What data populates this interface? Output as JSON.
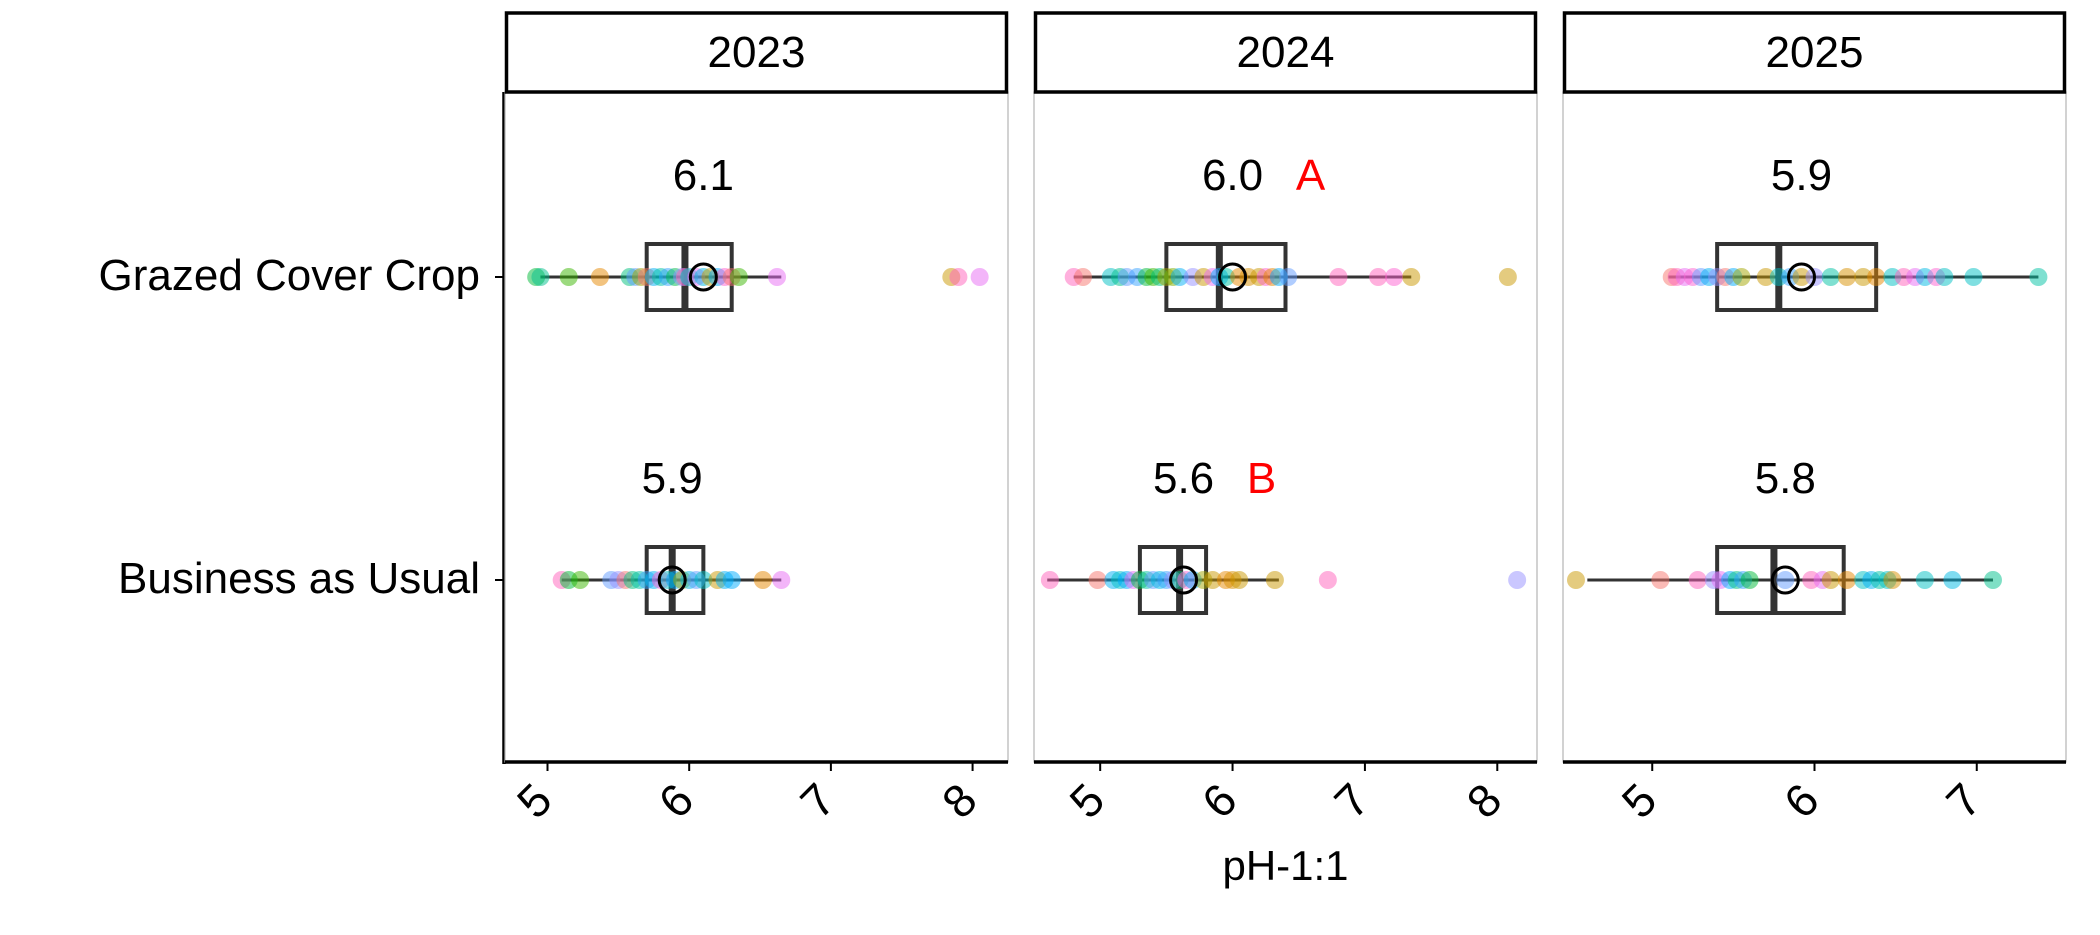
{
  "chart_data": {
    "type": "boxplot",
    "facet_variable": "year",
    "xlabel": "pH-1:1",
    "ylabel": "",
    "categories": [
      "Grazed Cover Crop",
      "Business as Usual"
    ],
    "facets": [
      {
        "label": "2023",
        "xlim": [
          4.7,
          8.25
        ],
        "x_ticks": [
          5,
          6,
          7,
          8
        ],
        "groups": [
          {
            "category": "Grazed Cover Crop",
            "mean_label": "6.1",
            "letter": "",
            "mean": 6.1,
            "box": {
              "min": 4.95,
              "q1": 5.7,
              "median": 5.97,
              "q3": 6.3,
              "max": 6.65
            },
            "points": [
              4.92,
              4.95,
              5.15,
              5.37,
              5.58,
              5.62,
              5.66,
              5.7,
              5.75,
              5.8,
              5.85,
              5.9,
              5.95,
              5.97,
              6.0,
              6.05,
              6.1,
              6.15,
              6.2,
              6.25,
              6.3,
              6.35,
              6.62,
              7.85,
              7.9,
              8.05
            ],
            "point_colors": [
              "#00BA38",
              "#00C08B",
              "#39B600",
              "#E58700",
              "#00BF7D",
              "#619CFF",
              "#A3A500",
              "#F8766D",
              "#00B0F6",
              "#00C1A3",
              "#35A2FF",
              "#00BB4E",
              "#9590FF",
              "#FF62BC",
              "#00BFC4",
              "#E76BF3",
              "#00B9E3",
              "#C99800",
              "#00ABFD",
              "#FD61D1",
              "#F8766D",
              "#39B600",
              "#E76BF3",
              "#C99800",
              "#FF62BC",
              "#E76BF3"
            ]
          },
          {
            "category": "Business as Usual",
            "mean_label": "5.9",
            "letter": "",
            "mean": 5.88,
            "box": {
              "min": 5.1,
              "q1": 5.7,
              "median": 5.88,
              "q3": 6.1,
              "max": 6.65
            },
            "points": [
              5.1,
              5.15,
              5.23,
              5.45,
              5.5,
              5.55,
              5.6,
              5.65,
              5.7,
              5.75,
              5.8,
              5.85,
              5.9,
              5.95,
              6.0,
              6.05,
              6.1,
              6.2,
              6.25,
              6.3,
              6.52,
              6.65
            ],
            "point_colors": [
              "#FF62BC",
              "#00BA38",
              "#39B600",
              "#619CFF",
              "#9590FF",
              "#F8766D",
              "#00BF7D",
              "#00C1A3",
              "#35A2FF",
              "#00B0F6",
              "#FD61D1",
              "#00BFC4",
              "#00A9FF",
              "#A3A500",
              "#00B9E3",
              "#619CFF",
              "#00BFC4",
              "#C99800",
              "#00B0F6",
              "#00ABFD",
              "#E58700",
              "#E76BF3"
            ]
          }
        ]
      },
      {
        "label": "2024",
        "xlim": [
          4.5,
          8.3
        ],
        "x_ticks": [
          5,
          6,
          7,
          8
        ],
        "groups": [
          {
            "category": "Grazed Cover Crop",
            "mean_label": "6.0",
            "letter": "A",
            "mean": 6.0,
            "box": {
              "min": 4.8,
              "q1": 5.5,
              "median": 5.9,
              "q3": 6.4,
              "max": 7.35
            },
            "points": [
              4.8,
              4.87,
              5.08,
              5.15,
              5.2,
              5.28,
              5.35,
              5.4,
              5.45,
              5.5,
              5.55,
              5.6,
              5.7,
              5.78,
              5.85,
              5.9,
              5.95,
              6.05,
              6.12,
              6.2,
              6.25,
              6.3,
              6.35,
              6.42,
              6.8,
              7.1,
              7.22,
              7.35,
              8.08
            ],
            "point_colors": [
              "#FF62BC",
              "#F8766D",
              "#00BFC4",
              "#00C08B",
              "#619CFF",
              "#35A2FF",
              "#00BA38",
              "#39B600",
              "#00BF7D",
              "#A3A500",
              "#7CAE00",
              "#00B0F6",
              "#9590FF",
              "#C99800",
              "#E76BF3",
              "#00ABFD",
              "#00C1A3",
              "#E58700",
              "#D89000",
              "#C99800",
              "#FD61D1",
              "#E58700",
              "#00A9FF",
              "#619CFF",
              "#FF62BC",
              "#FF62BC",
              "#FD61D1",
              "#C99800",
              "#C99800"
            ]
          },
          {
            "category": "Business as Usual",
            "mean_label": "5.6",
            "letter": "B",
            "mean": 5.63,
            "box": {
              "min": 4.6,
              "q1": 5.3,
              "median": 5.6,
              "q3": 5.8,
              "max": 6.35
            },
            "points": [
              4.62,
              4.98,
              5.1,
              5.15,
              5.2,
              5.25,
              5.3,
              5.35,
              5.4,
              5.45,
              5.5,
              5.55,
              5.6,
              5.65,
              5.7,
              5.78,
              5.85,
              5.95,
              6.0,
              6.05,
              6.32,
              6.72,
              8.15
            ],
            "point_colors": [
              "#FF62BC",
              "#F8766D",
              "#00B0F6",
              "#00BFC4",
              "#00A9FF",
              "#E76BF3",
              "#00BA38",
              "#00C1A3",
              "#619CFF",
              "#00B9E3",
              "#35A2FF",
              "#9590FF",
              "#00BF7D",
              "#FD61D1",
              "#00ABFD",
              "#A3A500",
              "#C99800",
              "#E58700",
              "#D89000",
              "#C99800",
              "#C99800",
              "#FF62BC",
              "#9590FF"
            ]
          }
        ]
      },
      {
        "label": "2025",
        "xlim": [
          4.45,
          7.55
        ],
        "x_ticks": [
          5,
          6,
          7
        ],
        "groups": [
          {
            "category": "Grazed Cover Crop",
            "mean_label": "5.9",
            "letter": "",
            "mean": 5.92,
            "box": {
              "min": 5.1,
              "q1": 5.4,
              "median": 5.78,
              "q3": 6.38,
              "max": 7.38
            },
            "points": [
              5.12,
              5.15,
              5.2,
              5.25,
              5.3,
              5.35,
              5.4,
              5.45,
              5.5,
              5.55,
              5.7,
              5.78,
              5.85,
              5.92,
              6.0,
              6.1,
              6.2,
              6.3,
              6.38,
              6.48,
              6.55,
              6.62,
              6.68,
              6.75,
              6.8,
              6.98,
              7.38
            ],
            "point_colors": [
              "#F8766D",
              "#FF62BC",
              "#E76BF3",
              "#FD61D1",
              "#619CFF",
              "#00B0F6",
              "#9590FF",
              "#F8766D",
              "#00ABFD",
              "#A3A500",
              "#C99800",
              "#00BFC4",
              "#35A2FF",
              "#C99800",
              "#9590FF",
              "#00C1A3",
              "#D89000",
              "#C99800",
              "#E58700",
              "#00BFC4",
              "#FF62BC",
              "#E76BF3",
              "#00B9E3",
              "#FD61D1",
              "#00BFC4",
              "#00BFC4",
              "#00C1A3"
            ]
          },
          {
            "category": "Business as Usual",
            "mean_label": "5.8",
            "letter": "",
            "mean": 5.82,
            "box": {
              "min": 4.6,
              "q1": 5.4,
              "median": 5.75,
              "q3": 6.18,
              "max": 7.1
            },
            "points": [
              4.53,
              5.05,
              5.28,
              5.38,
              5.42,
              5.48,
              5.52,
              5.56,
              5.6,
              5.82,
              5.98,
              6.05,
              6.1,
              6.2,
              6.3,
              6.35,
              6.4,
              6.45,
              6.48,
              6.68,
              6.85,
              7.1
            ],
            "point_colors": [
              "#C99800",
              "#F8766D",
              "#FF62BC",
              "#9590FF",
              "#E76BF3",
              "#00A9FF",
              "#00BF7D",
              "#35A2FF",
              "#00BA38",
              "#619CFF",
              "#FF62BC",
              "#E76BF3",
              "#C99800",
              "#E58700",
              "#00BFC4",
              "#00B0F6",
              "#00C1A3",
              "#00BFC4",
              "#D89000",
              "#00BFC4",
              "#00B9E3",
              "#00C08B"
            ]
          }
        ]
      }
    ],
    "styles": {
      "letter_color": "#FF0000",
      "box_color": "#333333",
      "point_opacity": 0.5,
      "mean_marker": "open-circle"
    }
  }
}
